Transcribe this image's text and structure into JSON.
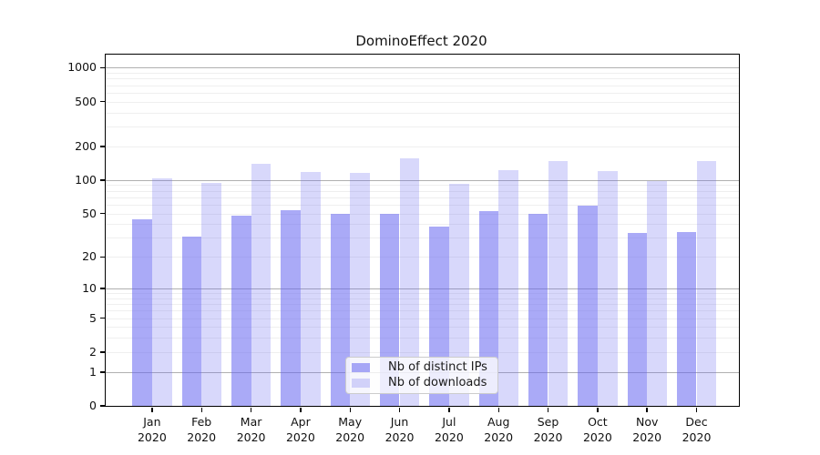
{
  "chart_data": {
    "type": "bar",
    "title": "DominoEffect 2020",
    "categories": [
      "Jan 2020",
      "Feb 2020",
      "Mar 2020",
      "Apr 2020",
      "May 2020",
      "Jun 2020",
      "Jul 2020",
      "Aug 2020",
      "Sep 2020",
      "Oct 2020",
      "Nov 2020",
      "Dec 2020"
    ],
    "months": [
      "Jan",
      "Feb",
      "Mar",
      "Apr",
      "May",
      "Jun",
      "Jul",
      "Aug",
      "Sep",
      "Oct",
      "Nov",
      "Dec"
    ],
    "year": "2020",
    "series": [
      {
        "name": "Nb of distinct IPs",
        "color": "rgba(100,100,240,0.55)",
        "values": [
          44,
          31,
          48,
          53,
          50,
          50,
          38,
          52,
          50,
          59,
          33,
          34
        ]
      },
      {
        "name": "Nb of downloads",
        "color": "rgba(100,100,240,0.25)",
        "values": [
          104,
          94,
          139,
          118,
          115,
          155,
          93,
          123,
          149,
          121,
          97,
          148
        ]
      }
    ],
    "yaxis": {
      "scale": "log1p",
      "tick_labels": [
        "0",
        "1",
        "2",
        "5",
        "10",
        "20",
        "50",
        "100",
        "200",
        "500",
        "1000"
      ],
      "ticks": [
        0,
        1,
        2,
        5,
        10,
        20,
        50,
        100,
        200,
        500,
        1000
      ],
      "major_gridlines": [
        1,
        10,
        100,
        1000
      ],
      "range": [
        0,
        1000
      ]
    },
    "legend": {
      "position": "lower-center-inside",
      "entries": [
        "Nb of distinct IPs",
        "Nb of downloads"
      ]
    },
    "grid": true,
    "colors": {
      "bar_base": "#6464f0",
      "bar_dark_rendered": "#a9a9f6",
      "bar_light_rendered": "#d8d8fa",
      "major_grid": "#b0b0b0",
      "minor_grid": "#efefef",
      "frame": "#000000",
      "text": "#111111",
      "legend_border": "#cccccc"
    }
  }
}
